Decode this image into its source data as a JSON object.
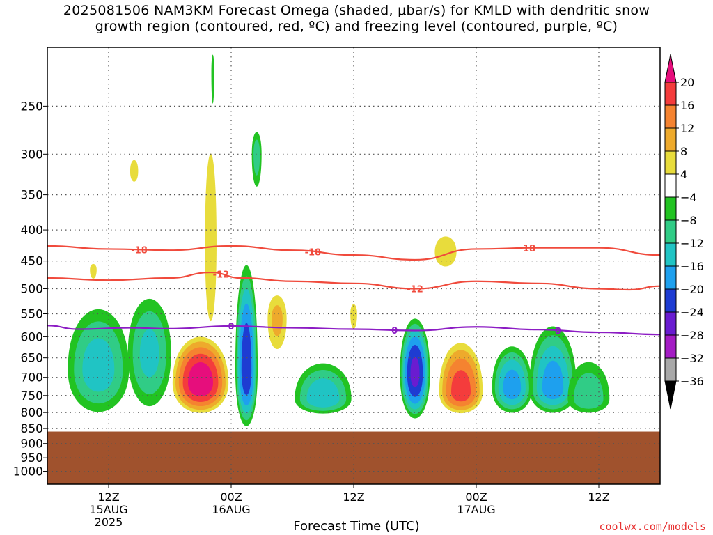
{
  "title": {
    "line1": "2025081506 NAM3KM Forecast Omega (shaded, μbar/s) for KMLD with dendritic snow",
    "line2": "growth region (contoured, red, ºC) and freezing level (contoured, purple, ºC)"
  },
  "footer": {
    "link": "coolwx.com/models"
  },
  "colors": {
    "ground": "#a0522d",
    "dgz": "#f04a3c",
    "freezing": "#8c1cc4",
    "grid": "#555555"
  },
  "chart_data": {
    "type": "heatmap",
    "xlabel": "Forecast Time (UTC)",
    "x_ticks": [
      {
        "hour": 6,
        "label": "12Z",
        "sub1": "15AUG",
        "sub2": "2025"
      },
      {
        "hour": 18,
        "label": "00Z",
        "sub1": "16AUG",
        "sub2": ""
      },
      {
        "hour": 30,
        "label": "12Z",
        "sub1": "",
        "sub2": ""
      },
      {
        "hour": 42,
        "label": "00Z",
        "sub1": "17AUG",
        "sub2": ""
      },
      {
        "hour": 54,
        "label": "12Z",
        "sub1": "",
        "sub2": ""
      }
    ],
    "xlim_hours": [
      0,
      60
    ],
    "y_levels": [
      250,
      300,
      350,
      400,
      450,
      500,
      550,
      600,
      650,
      700,
      750,
      800,
      850,
      900,
      950,
      1000
    ],
    "ylim_mb": [
      200,
      1050
    ],
    "y_scale": "log",
    "grid": "dotted",
    "colorbar": {
      "labels": [
        "20",
        "16",
        "12",
        "8",
        "4",
        "−4",
        "−8",
        "−12",
        "−16",
        "−20",
        "−24",
        "−28",
        "−32",
        "−36"
      ],
      "colors": [
        "#e60e7c",
        "#f43c3c",
        "#f58330",
        "#eeaa2c",
        "#e8dc3c",
        "#ffffff",
        "#22c322",
        "#30cc86",
        "#20c4c4",
        "#1ea0ee",
        "#1e3cd2",
        "#6a1cd0",
        "#a41cc4",
        "#a8a8a8",
        "#000000"
      ]
    },
    "ground_level_mb": 860,
    "contours": [
      {
        "name": "-18",
        "color": "#f04a3c",
        "points": [
          [
            0,
            425
          ],
          [
            6,
            430
          ],
          [
            12,
            432
          ],
          [
            18,
            425
          ],
          [
            24,
            432
          ],
          [
            30,
            440
          ],
          [
            36,
            448
          ],
          [
            42,
            430
          ],
          [
            48,
            428
          ],
          [
            54,
            428
          ],
          [
            60,
            440
          ]
        ],
        "labels": [
          [
            9,
            "-18"
          ],
          [
            26,
            "-18"
          ],
          [
            47,
            "-18"
          ]
        ]
      },
      {
        "name": "-12",
        "color": "#f04a3c",
        "points": [
          [
            0,
            480
          ],
          [
            6,
            484
          ],
          [
            12,
            480
          ],
          [
            16,
            470
          ],
          [
            19,
            480
          ],
          [
            24,
            486
          ],
          [
            30,
            490
          ],
          [
            36,
            500
          ],
          [
            42,
            486
          ],
          [
            48,
            490
          ],
          [
            54,
            500
          ],
          [
            57,
            502
          ],
          [
            60,
            495
          ]
        ],
        "labels": [
          [
            17,
            "-12"
          ],
          [
            36,
            "-12"
          ]
        ]
      },
      {
        "name": "0",
        "color": "#8c1cc4",
        "points": [
          [
            0,
            575
          ],
          [
            3,
            583
          ],
          [
            8,
            580
          ],
          [
            12,
            582
          ],
          [
            18,
            576
          ],
          [
            24,
            580
          ],
          [
            30,
            583
          ],
          [
            36,
            586
          ],
          [
            42,
            578
          ],
          [
            48,
            584
          ],
          [
            54,
            590
          ],
          [
            60,
            595
          ]
        ],
        "labels": [
          [
            18,
            "0"
          ],
          [
            34,
            "0"
          ],
          [
            50,
            "0"
          ]
        ]
      }
    ],
    "omega_cells": [
      {
        "hour": 15,
        "p_center": 715,
        "p_top": 590,
        "p_bottom": 810,
        "hw": 3.0,
        "peak": 22,
        "sign": 1
      },
      {
        "hour": 16,
        "p_center": 420,
        "p_top": 260,
        "p_bottom": 640,
        "hw": 0.8,
        "peak": 6,
        "sign": 1
      },
      {
        "hour": 16.2,
        "p_center": 220,
        "p_top": 200,
        "p_bottom": 260,
        "hw": 0.2,
        "peak": 6,
        "sign": -1
      },
      {
        "hour": 8.5,
        "p_center": 320,
        "p_top": 300,
        "p_bottom": 340,
        "hw": 0.6,
        "peak": 5,
        "sign": 1
      },
      {
        "hour": 4.5,
        "p_center": 465,
        "p_top": 450,
        "p_bottom": 490,
        "hw": 0.5,
        "peak": 5,
        "sign": 1
      },
      {
        "hour": 5,
        "p_center": 680,
        "p_top": 520,
        "p_bottom": 820,
        "hw": 3.5,
        "peak": 13,
        "sign": -1
      },
      {
        "hour": 10,
        "p_center": 640,
        "p_top": 500,
        "p_bottom": 810,
        "hw": 2.5,
        "peak": 12,
        "sign": -1
      },
      {
        "hour": 19.5,
        "p_center": 680,
        "p_top": 440,
        "p_bottom": 860,
        "hw": 1.2,
        "peak": 22,
        "sign": -1
      },
      {
        "hour": 20.5,
        "p_center": 300,
        "p_top": 270,
        "p_bottom": 350,
        "hw": 0.6,
        "peak": 9,
        "sign": -1
      },
      {
        "hour": 22.5,
        "p_center": 560,
        "p_top": 500,
        "p_bottom": 650,
        "hw": 1.2,
        "peak": 8,
        "sign": 1
      },
      {
        "hour": 30,
        "p_center": 550,
        "p_top": 520,
        "p_bottom": 600,
        "hw": 0.5,
        "peak": 5,
        "sign": 1
      },
      {
        "hour": 27,
        "p_center": 760,
        "p_top": 650,
        "p_bottom": 810,
        "hw": 3.2,
        "peak": 14,
        "sign": -1
      },
      {
        "hour": 36,
        "p_center": 690,
        "p_top": 550,
        "p_bottom": 830,
        "hw": 1.6,
        "peak": 24,
        "sign": -1
      },
      {
        "hour": 40.5,
        "p_center": 740,
        "p_top": 600,
        "p_bottom": 810,
        "hw": 2.4,
        "peak": 17,
        "sign": 1
      },
      {
        "hour": 39,
        "p_center": 435,
        "p_top": 400,
        "p_bottom": 470,
        "hw": 1.5,
        "peak": 6,
        "sign": 1
      },
      {
        "hour": 45.5,
        "p_center": 730,
        "p_top": 610,
        "p_bottom": 810,
        "hw": 2.2,
        "peak": 17,
        "sign": -1
      },
      {
        "hour": 49.5,
        "p_center": 730,
        "p_top": 560,
        "p_bottom": 810,
        "hw": 2.6,
        "peak": 17,
        "sign": -1
      },
      {
        "hour": 53,
        "p_center": 760,
        "p_top": 640,
        "p_bottom": 810,
        "hw": 2.5,
        "peak": 10,
        "sign": -1
      }
    ]
  }
}
